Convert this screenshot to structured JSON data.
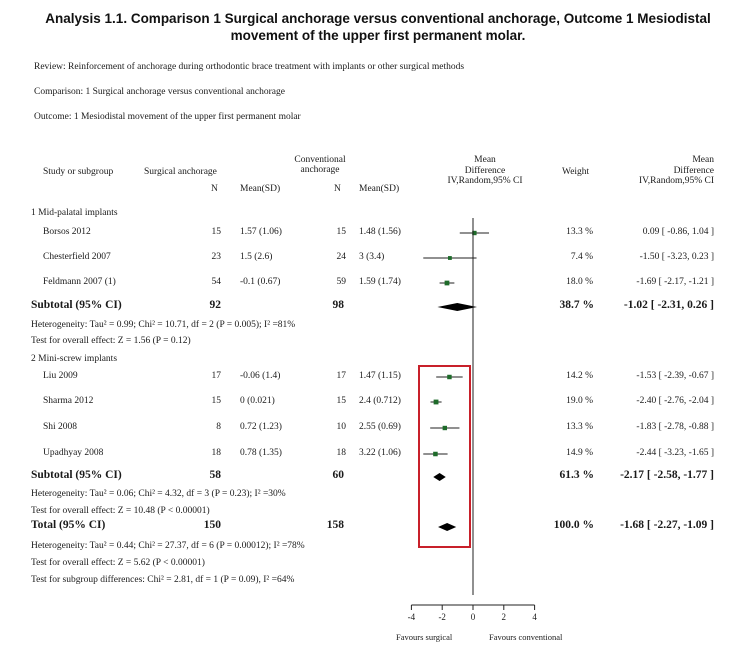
{
  "title_line1": "Analysis 1.1.   Comparison 1 Surgical anchorage versus conventional anchorage, Outcome 1 Mesiodistal",
  "title_line2": "movement of the upper first permanent molar.",
  "review": "Review:   Reinforcement of anchorage during orthodontic brace treatment with implants or other surgical methods",
  "comparison": "Comparison:    1 Surgical anchorage versus conventional anchorage",
  "outcome": "Outcome:    1 Mesiodistal movement of the upper first permanent molar",
  "headers": {
    "study": "Study or subgroup",
    "group1": "Surgical anchorage",
    "group2_line1": "Conventional",
    "group2_line2": "anchorage",
    "n": "N",
    "mean_sd": "Mean(SD)",
    "md_line1": "Mean",
    "md_line2": "Difference",
    "md_line3": "IV,Random,95% CI",
    "weight": "Weight",
    "md2_line1": "Mean",
    "md2_line2": "Difference",
    "md2_line3": "IV,Random,95% CI"
  },
  "chart_data": {
    "type": "forest",
    "xlim": [
      -4,
      4
    ],
    "ticks": [
      "-4",
      "-2",
      "0",
      "2",
      "4"
    ],
    "tick_values": [
      -4,
      -2,
      0,
      2,
      4
    ],
    "favours_left": "Favours surgical",
    "favours_right": "Favours conventional",
    "subgroups": [
      {
        "name": "1 Mid-palatal implants",
        "studies": [
          {
            "name": "Borsos 2012",
            "n1": "15",
            "msd1": "1.57 (1.06)",
            "n2": "15",
            "msd2": "1.48 (1.56)",
            "weight": "13.3 %",
            "ci_text": "0.09 [ -0.86, 1.04 ]",
            "md": 0.09,
            "lo": -0.86,
            "hi": 1.04,
            "w": 13.3
          },
          {
            "name": "Chesterfield 2007",
            "n1": "23",
            "msd1": "1.5 (2.6)",
            "n2": "24",
            "msd2": "3 (3.4)",
            "weight": "7.4 %",
            "ci_text": "-1.50 [ -3.23, 0.23 ]",
            "md": -1.5,
            "lo": -3.23,
            "hi": 0.23,
            "w": 7.4
          },
          {
            "name": "Feldmann 2007 (1)",
            "n1": "54",
            "msd1": "-0.1 (0.67)",
            "n2": "59",
            "msd2": "1.59 (1.74)",
            "weight": "18.0 %",
            "ci_text": "-1.69 [ -2.17, -1.21 ]",
            "md": -1.69,
            "lo": -2.17,
            "hi": -1.21,
            "w": 18.0
          }
        ],
        "subtotal": {
          "label": "Subtotal (95% CI)",
          "n1": "92",
          "n2": "98",
          "weight": "38.7 %",
          "ci_text": "-1.02 [ -2.31, 0.26 ]",
          "md": -1.02,
          "lo": -2.31,
          "hi": 0.26
        },
        "heterogeneity": "Heterogeneity: Tau² = 0.99; Chi² = 10.71, df = 2 (P = 0.005); I² =81%",
        "overall": "Test for overall effect: Z = 1.56 (P = 0.12)"
      },
      {
        "name": "2 Mini-screw implants",
        "studies": [
          {
            "name": "Liu 2009",
            "n1": "17",
            "msd1": "-0.06 (1.4)",
            "n2": "17",
            "msd2": "1.47 (1.15)",
            "weight": "14.2 %",
            "ci_text": "-1.53 [ -2.39, -0.67 ]",
            "md": -1.53,
            "lo": -2.39,
            "hi": -0.67,
            "w": 14.2
          },
          {
            "name": "Sharma 2012",
            "n1": "15",
            "msd1": "0 (0.021)",
            "n2": "15",
            "msd2": "2.4 (0.712)",
            "weight": "19.0 %",
            "ci_text": "-2.40 [ -2.76, -2.04 ]",
            "md": -2.4,
            "lo": -2.76,
            "hi": -2.04,
            "w": 19.0
          },
          {
            "name": "Shi 2008",
            "n1": "8",
            "msd1": "0.72 (1.23)",
            "n2": "10",
            "msd2": "2.55 (0.69)",
            "weight": "13.3 %",
            "ci_text": "-1.83 [ -2.78, -0.88 ]",
            "md": -1.83,
            "lo": -2.78,
            "hi": -0.88,
            "w": 13.3
          },
          {
            "name": "Upadhyay 2008",
            "n1": "18",
            "msd1": "0.78 (1.35)",
            "n2": "18",
            "msd2": "3.22 (1.06)",
            "weight": "14.9 %",
            "ci_text": "-2.44 [ -3.23, -1.65 ]",
            "md": -2.44,
            "lo": -3.23,
            "hi": -1.65,
            "w": 14.9
          }
        ],
        "subtotal": {
          "label": "Subtotal (95% CI)",
          "n1": "58",
          "n2": "60",
          "weight": "61.3 %",
          "ci_text": "-2.17 [ -2.58, -1.77 ]",
          "md": -2.17,
          "lo": -2.58,
          "hi": -1.77
        },
        "heterogeneity": "Heterogeneity: Tau² = 0.06; Chi² = 4.32, df = 3 (P = 0.23); I² =30%",
        "overall": "Test for overall effect: Z = 10.48 (P < 0.00001)"
      }
    ],
    "total": {
      "label": "Total (95% CI)",
      "n1": "150",
      "n2": "158",
      "weight": "100.0 %",
      "ci_text": "-1.68 [ -2.27, -1.09 ]",
      "md": -1.68,
      "lo": -2.27,
      "hi": -1.09
    },
    "total_heterogeneity": "Heterogeneity: Tau² = 0.44; Chi² = 27.37, df = 6 (P = 0.00012); I² =78%",
    "total_overall": "Test for overall effect: Z = 5.62 (P < 0.00001)",
    "subgroup_differences": "Test for subgroup differences: Chi² = 2.81, df = 1 (P = 0.09), I² =64%"
  },
  "colors": {
    "marker": "#1e6b2a",
    "highlight": "#c8202a",
    "text": "#1a1a1a"
  }
}
